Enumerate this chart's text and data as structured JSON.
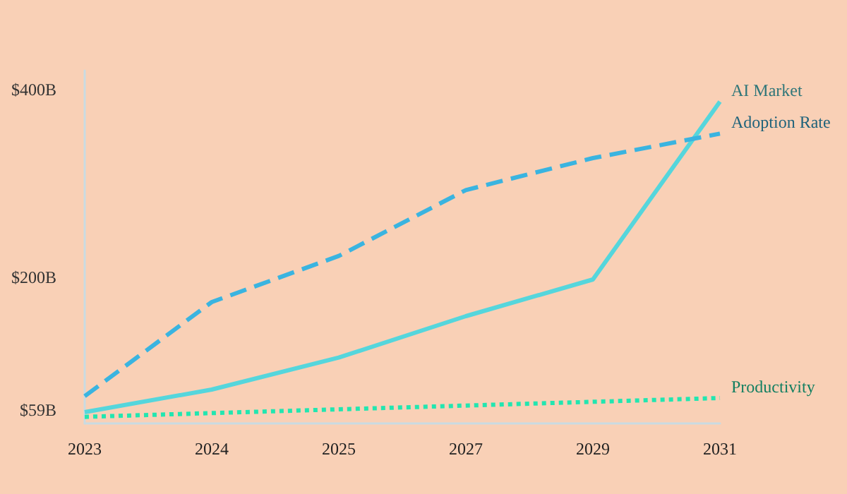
{
  "chart_data": {
    "type": "line",
    "categories": [
      "2023",
      "2024",
      "2025",
      "2027",
      "2029",
      "2031"
    ],
    "series": [
      {
        "name": "AI Market",
        "color": "#55d6dc",
        "line_style": "solid",
        "values": [
          57,
          81,
          115,
          159,
          198,
          387
        ]
      },
      {
        "name": "Adoption Rate",
        "color": "#3ab4e0",
        "line_style": "dashed",
        "values": [
          74,
          174,
          223,
          293,
          327,
          353
        ]
      },
      {
        "name": "Productivity",
        "color": "#22e6b0",
        "line_style": "dotted",
        "values": [
          52,
          56,
          60,
          64,
          68,
          72
        ]
      }
    ],
    "ylim": [
      45,
      420
    ],
    "yticks": [
      {
        "value": 59,
        "label": "$59B"
      },
      {
        "value": 200,
        "label": "$200B"
      },
      {
        "value": 400,
        "label": "$400B"
      }
    ],
    "grid": false,
    "legend": false,
    "marker": "none"
  }
}
